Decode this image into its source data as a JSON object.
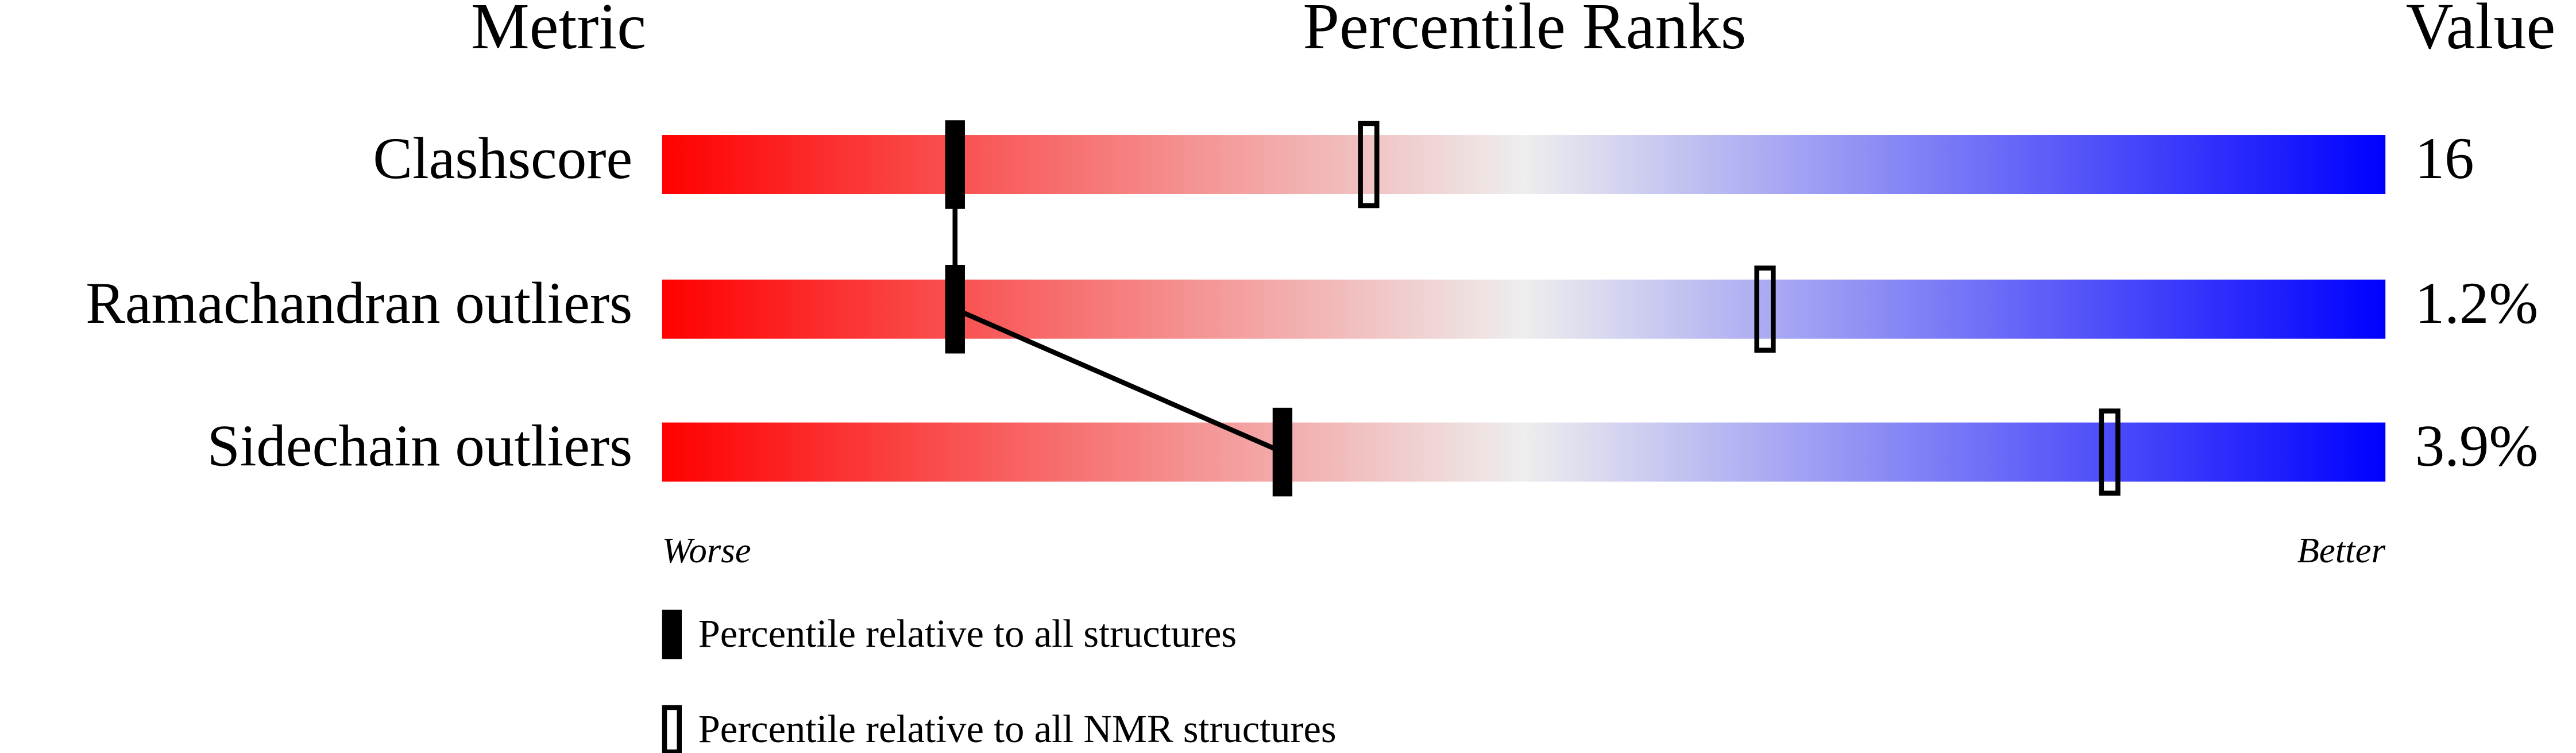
{
  "chart_data": {
    "type": "percentile",
    "title": "Percentile Ranks",
    "metric_header": "Metric",
    "value_header": "Value",
    "categories": [
      "Clashscore",
      "Ramachandran outliers",
      "Sidechain outliers"
    ],
    "metric_values": [
      "16",
      "1.2%",
      "3.9%"
    ],
    "xlim": [
      0,
      100
    ],
    "low_label": "Worse",
    "high_label": "Better",
    "gradient": [
      "#ff0000",
      "#eeeeee",
      "#0000ff"
    ],
    "series": [
      {
        "name": "Percentile relative to all structures",
        "color": "#000000",
        "filled": true,
        "values": [
          17,
          17,
          36
        ]
      },
      {
        "name": "Percentile relative to all NMR structures",
        "color": "#000000",
        "filled": false,
        "values": [
          41,
          64,
          84
        ]
      }
    ]
  }
}
